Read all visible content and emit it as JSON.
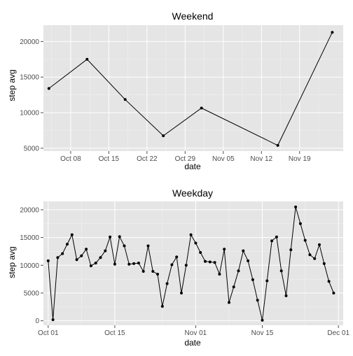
{
  "chart_data": [
    {
      "type": "line",
      "title": "Weekend",
      "xlabel": "date",
      "ylabel": "step avg",
      "x_is_date": true,
      "xlim": [
        "2012-10-03",
        "2012-11-27"
      ],
      "ylim": [
        4600,
        22300
      ],
      "x_ticks": [
        {
          "date": "2012-10-08",
          "label": "Oct 08"
        },
        {
          "date": "2012-10-15",
          "label": "Oct 15"
        },
        {
          "date": "2012-10-22",
          "label": "Oct 22"
        },
        {
          "date": "2012-10-29",
          "label": "Oct 29"
        },
        {
          "date": "2012-11-05",
          "label": "Nov 05"
        },
        {
          "date": "2012-11-12",
          "label": "Nov 12"
        },
        {
          "date": "2012-11-19",
          "label": "Nov 19"
        }
      ],
      "y_ticks": [
        5000,
        10000,
        15000,
        20000
      ],
      "grid": true,
      "x": [
        "2012-10-04",
        "2012-10-11",
        "2012-10-18",
        "2012-10-25",
        "2012-11-01",
        "2012-11-15",
        "2012-11-25"
      ],
      "values": [
        13400,
        17500,
        11850,
        6750,
        10650,
        5400,
        21300
      ]
    },
    {
      "type": "line",
      "title": "Weekday",
      "xlabel": "date",
      "ylabel": "step avg",
      "x_is_date": true,
      "xlim": [
        "2012-09-30",
        "2012-12-02"
      ],
      "ylim": [
        -800,
        21500
      ],
      "x_ticks": [
        {
          "date": "2012-10-01",
          "label": "Oct 01"
        },
        {
          "date": "2012-10-15",
          "label": "Oct 15"
        },
        {
          "date": "2012-11-01",
          "label": "Nov 01"
        },
        {
          "date": "2012-11-15",
          "label": "Nov 15"
        },
        {
          "date": "2012-12-01",
          "label": "Dec 01"
        }
      ],
      "y_ticks": [
        0,
        5000,
        10000,
        15000,
        20000
      ],
      "grid": true,
      "x": [
        "2012-10-01",
        "2012-10-02",
        "2012-10-03",
        "2012-10-04",
        "2012-10-05",
        "2012-10-06",
        "2012-10-07",
        "2012-10-08",
        "2012-10-09",
        "2012-10-10",
        "2012-10-11",
        "2012-10-12",
        "2012-10-13",
        "2012-10-14",
        "2012-10-15",
        "2012-10-16",
        "2012-10-17",
        "2012-10-18",
        "2012-10-19",
        "2012-10-20",
        "2012-10-21",
        "2012-10-22",
        "2012-10-23",
        "2012-10-24",
        "2012-10-25",
        "2012-10-26",
        "2012-10-27",
        "2012-10-28",
        "2012-10-29",
        "2012-10-30",
        "2012-10-31",
        "2012-11-01",
        "2012-11-02",
        "2012-11-03",
        "2012-11-04",
        "2012-11-05",
        "2012-11-06",
        "2012-11-07",
        "2012-11-08",
        "2012-11-09",
        "2012-11-10",
        "2012-11-11",
        "2012-11-12",
        "2012-11-13",
        "2012-11-14",
        "2012-11-15",
        "2012-11-16",
        "2012-11-17",
        "2012-11-18",
        "2012-11-19",
        "2012-11-20",
        "2012-11-21",
        "2012-11-22",
        "2012-11-23",
        "2012-11-24",
        "2012-11-25",
        "2012-11-26",
        "2012-11-27",
        "2012-11-28",
        "2012-11-29",
        "2012-11-30"
      ],
      "values": [
        10800,
        200,
        11400,
        12100,
        13800,
        15500,
        11000,
        11700,
        12900,
        9900,
        10400,
        11400,
        12600,
        15100,
        10200,
        15150,
        13500,
        10200,
        10300,
        10400,
        8900,
        13500,
        8900,
        8400,
        2600,
        6700,
        10100,
        11500,
        5000,
        10000,
        15500,
        14000,
        12300,
        10700,
        10600,
        10500,
        8400,
        12900,
        3300,
        6100,
        9000,
        12600,
        10800,
        7400,
        3700,
        100,
        7200,
        14400,
        15100,
        9000,
        4500,
        12800,
        20500,
        17500,
        14500,
        11900,
        11200,
        13700,
        10300,
        7100,
        5000
      ]
    }
  ]
}
